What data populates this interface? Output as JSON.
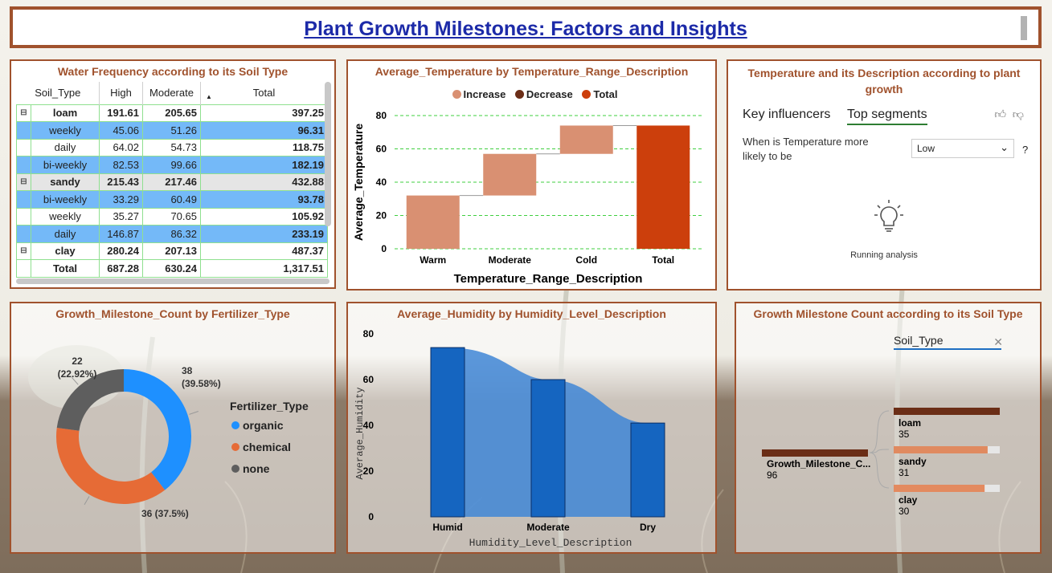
{
  "title": "Plant Growth Milestones: Factors and Insights",
  "colors": {
    "accent": "#a0522d",
    "title_blue": "#1c2aa8",
    "highlight": "#74b9f8",
    "increase": "#d99072",
    "total": "#cc3f0c",
    "organic": "#1e90ff",
    "chemical": "#e66b36",
    "none": "#5e5e5e",
    "humid_bar": "#1565c0",
    "loam": "#6b2e17",
    "sandy": "#e08a60",
    "clay": "#e38a5f"
  },
  "water_matrix": {
    "title": "Water Frequency according to its Soil Type",
    "headers": [
      "Soil_Type",
      "High",
      "Moderate",
      "Total"
    ],
    "rows": [
      {
        "kind": "parent",
        "label": "loam",
        "high": "191.61",
        "moderate": "205.65",
        "total": "397.25"
      },
      {
        "kind": "child-hl",
        "label": "weekly",
        "high": "45.06",
        "moderate": "51.26",
        "total": "96.31"
      },
      {
        "kind": "child",
        "label": "daily",
        "high": "64.02",
        "moderate": "54.73",
        "total": "118.75"
      },
      {
        "kind": "child-hl",
        "label": "bi-weekly",
        "high": "82.53",
        "moderate": "99.66",
        "total": "182.19"
      },
      {
        "kind": "parent-hl",
        "label": "sandy",
        "high": "215.43",
        "moderate": "217.46",
        "total": "432.88"
      },
      {
        "kind": "child-hl",
        "label": "bi-weekly",
        "high": "33.29",
        "moderate": "60.49",
        "total": "93.78"
      },
      {
        "kind": "child",
        "label": "weekly",
        "high": "35.27",
        "moderate": "70.65",
        "total": "105.92"
      },
      {
        "kind": "child-hl",
        "label": "daily",
        "high": "146.87",
        "moderate": "86.32",
        "total": "233.19"
      },
      {
        "kind": "parent",
        "label": "clay",
        "high": "280.24",
        "moderate": "207.13",
        "total": "487.37"
      },
      {
        "kind": "grand",
        "label": "Total",
        "high": "687.28",
        "moderate": "630.24",
        "total": "1,317.51"
      }
    ]
  },
  "temp_chart": {
    "title": "Average_Temperature by Temperature_Range_Description",
    "legend": [
      "Increase",
      "Decrease",
      "Total"
    ],
    "xlabel": "Temperature_Range_Description",
    "ylabel": "Average_Temperature"
  },
  "key_influencers": {
    "title": "Temperature and its Description according to plant growth",
    "tab1": "Key influencers",
    "tab2": "Top segments",
    "question": "When is Temperature more likely to be",
    "dropdown_value": "Low",
    "help": "?",
    "status": "Running analysis"
  },
  "fertilizer_chart": {
    "title": "Growth_Milestone_Count by Fertilizer_Type",
    "legend_title": "Fertilizer_Type",
    "labels": {
      "organic": "38\n(39.58%)",
      "chemical": "36 (37.5%)",
      "none": "22\n(22.92%)"
    }
  },
  "humidity_chart": {
    "title": "Average_Humidity by Humidity_Level_Description",
    "xlabel": "Humidity_Level_Description",
    "ylabel": "Average_Humidity"
  },
  "soil_tree": {
    "title": "Growth Milestone Count according to its Soil Type",
    "slicer": "Soil_Type",
    "root_label": "Growth_Milestone_C...",
    "root_value": "96"
  },
  "chart_data": [
    {
      "type": "bar",
      "subtype": "waterfall",
      "title": "Average_Temperature by Temperature_Range_Description",
      "categories": [
        "Warm",
        "Moderate",
        "Cold",
        "Total"
      ],
      "values": [
        32,
        25,
        17,
        74
      ],
      "starts": [
        0,
        32,
        57,
        0
      ],
      "kinds": [
        "increase",
        "increase",
        "increase",
        "total"
      ],
      "xlabel": "Temperature_Range_Description",
      "ylabel": "Average_Temperature",
      "ylim": [
        0,
        80
      ],
      "yticks": [
        0,
        20,
        40,
        60,
        80
      ],
      "grid": true
    },
    {
      "type": "pie",
      "subtype": "donut",
      "title": "Growth_Milestone_Count by Fertilizer_Type",
      "categories": [
        "organic",
        "chemical",
        "none"
      ],
      "values": [
        38,
        36,
        22
      ],
      "percent": [
        39.58,
        37.5,
        22.92
      ]
    },
    {
      "type": "bar",
      "title": "Average_Humidity by Humidity_Level_Description",
      "categories": [
        "Humid",
        "Moderate",
        "Dry"
      ],
      "values": [
        74,
        60,
        41
      ],
      "xlabel": "Humidity_Level_Description",
      "ylabel": "Average_Humidity",
      "ylim": [
        0,
        80
      ],
      "yticks": [
        0,
        20,
        40,
        60,
        80
      ]
    },
    {
      "type": "bar",
      "subtype": "decomposition-tree",
      "title": "Growth Milestone Count according to its Soil Type",
      "categories": [
        "loam",
        "sandy",
        "clay"
      ],
      "values": [
        35,
        31,
        30
      ],
      "total": 96
    }
  ]
}
